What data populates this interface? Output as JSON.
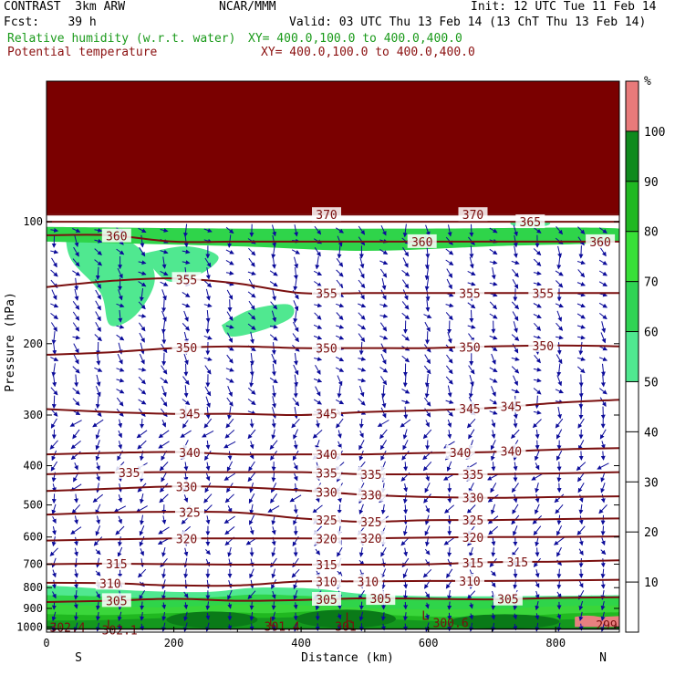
{
  "header": {
    "model": "CONTRAST  3km ARW",
    "org": "NCAR/MMM",
    "init": "Init: 12 UTC Tue 11 Feb 14",
    "fcst": "Fcst:    39 h",
    "valid": "Valid: 03 UTC Thu 13 Feb 14 (13 ChT Thu 13 Feb 14)",
    "field1": "Relative humidity (w.r.t. water)",
    "field1_xy": "XY= 400.0,100.0 to 400.0,400.0",
    "field2": "Potential temperature",
    "field2_xy": "XY= 400.0,100.0 to 400.0,400.0"
  },
  "colors": {
    "theta": "#7a0f0f",
    "wind": "#0c0c9a",
    "rh": [
      "#ffffff",
      "#50e890",
      "#2fd44a",
      "#3ad63a",
      "#20b820",
      "#14981e",
      "#0a7a18",
      "#e88080",
      "#f5a5a5"
    ]
  },
  "chart_data": {
    "type": "contour",
    "xlabel": "Distance (km)",
    "ylabel": "Pressure (hPa)",
    "xlim": [
      0,
      900
    ],
    "ylim": [
      1030,
      45
    ],
    "y_scale": "log",
    "xticks": [
      0,
      200,
      400,
      600,
      800
    ],
    "yticks": [
      100,
      200,
      300,
      400,
      500,
      600,
      700,
      800,
      900,
      1000
    ],
    "x_end_labels": {
      "left": "S",
      "right": "N"
    },
    "colorbar": {
      "unit": "%",
      "levels": [
        10,
        20,
        30,
        40,
        50,
        60,
        70,
        80,
        90,
        100
      ],
      "bands": [
        {
          "from": 0,
          "to": 50,
          "color": "#ffffff"
        },
        {
          "from": 50,
          "to": 60,
          "color": "#50e890"
        },
        {
          "from": 60,
          "to": 70,
          "color": "#30d454"
        },
        {
          "from": 70,
          "to": 80,
          "color": "#38e038"
        },
        {
          "from": 80,
          "to": 90,
          "color": "#20b822"
        },
        {
          "from": 90,
          "to": 100,
          "color": "#0f8a1e"
        },
        {
          "from": 100,
          "to": 110,
          "color": "#e87a7a"
        }
      ]
    },
    "theta_contours": [
      {
        "level": 305,
        "x": [
          0,
          100,
          200,
          300,
          400,
          500,
          600,
          700,
          800,
          900
        ],
        "p": [
          868,
          862,
          852,
          862,
          858,
          850,
          852,
          855,
          848,
          845
        ],
        "labels_x": [
          110,
          440,
          525,
          725
        ]
      },
      {
        "level": 310,
        "x": [
          0,
          100,
          200,
          300,
          400,
          500,
          600,
          700,
          800,
          900
        ],
        "p": [
          778,
          780,
          790,
          790,
          772,
          772,
          770,
          770,
          768,
          765
        ],
        "labels_x": [
          100,
          440,
          505,
          665
        ]
      },
      {
        "level": 315,
        "x": [
          0,
          100,
          200,
          300,
          400,
          500,
          600,
          700,
          800,
          900
        ],
        "p": [
          700,
          698,
          700,
          702,
          702,
          702,
          700,
          692,
          690,
          685
        ],
        "labels_x": [
          110,
          440,
          670,
          740
        ]
      },
      {
        "level": 320,
        "x": [
          0,
          100,
          200,
          300,
          400,
          500,
          600,
          700,
          800,
          900
        ],
        "p": [
          612,
          608,
          605,
          605,
          605,
          605,
          602,
          600,
          600,
          598
        ],
        "labels_x": [
          220,
          440,
          510,
          670
        ]
      },
      {
        "level": 325,
        "x": [
          0,
          100,
          200,
          300,
          400,
          500,
          600,
          700,
          800,
          900
        ],
        "p": [
          528,
          522,
          520,
          522,
          540,
          550,
          545,
          545,
          542,
          540
        ],
        "labels_x": [
          225,
          440,
          510,
          670
        ]
      },
      {
        "level": 330,
        "x": [
          0,
          100,
          200,
          300,
          400,
          500,
          600,
          700,
          800,
          900
        ],
        "p": [
          462,
          456,
          450,
          452,
          460,
          472,
          478,
          480,
          478,
          476
        ],
        "labels_x": [
          220,
          440,
          510,
          670
        ]
      },
      {
        "level": 335,
        "x": [
          0,
          100,
          200,
          300,
          400,
          500,
          600,
          700,
          800,
          900
        ],
        "p": [
          420,
          416,
          415,
          415,
          415,
          420,
          420,
          420,
          418,
          415
        ],
        "labels_x": [
          130,
          440,
          510,
          670
        ]
      },
      {
        "level": 340,
        "x": [
          0,
          100,
          200,
          300,
          400,
          500,
          600,
          700,
          800,
          900
        ],
        "p": [
          375,
          372,
          370,
          375,
          375,
          375,
          372,
          370,
          365,
          362
        ],
        "labels_x": [
          225,
          440,
          650,
          730
        ]
      },
      {
        "level": 345,
        "x": [
          0,
          100,
          200,
          300,
          400,
          500,
          600,
          700,
          800,
          900
        ],
        "p": [
          290,
          295,
          298,
          298,
          300,
          295,
          292,
          288,
          280,
          275
        ],
        "labels_x": [
          225,
          440,
          665,
          730
        ]
      },
      {
        "level": 350,
        "x": [
          0,
          100,
          200,
          300,
          400,
          500,
          600,
          700,
          800,
          900
        ],
        "p": [
          213,
          210,
          205,
          203,
          205,
          205,
          205,
          203,
          202,
          203
        ],
        "labels_x": [
          220,
          440,
          665,
          780
        ]
      },
      {
        "level": 355,
        "x": [
          0,
          100,
          200,
          300,
          400,
          500,
          600,
          700,
          800,
          900
        ],
        "p": [
          145,
          140,
          138,
          142,
          150,
          150,
          150,
          150,
          150,
          150
        ],
        "labels_x": [
          220,
          440,
          665,
          780
        ]
      },
      {
        "level": 360,
        "x": [
          0,
          100,
          200,
          300,
          400,
          500,
          600,
          700,
          800,
          900
        ],
        "p": [
          108,
          108,
          112,
          112,
          112,
          112,
          112,
          112,
          112,
          112
        ],
        "labels_x": [
          110,
          590,
          870
        ]
      },
      {
        "level": 365,
        "x": [
          0,
          100,
          200,
          300,
          400,
          500,
          600,
          700,
          800,
          900
        ],
        "p": [
          100,
          100,
          100,
          100,
          100,
          100,
          100,
          100,
          100,
          100
        ],
        "labels_x": [
          760
        ]
      },
      {
        "level": 370,
        "x": [
          0,
          100,
          200,
          300,
          400,
          500,
          600,
          700,
          800,
          900
        ],
        "p": [
          96,
          96,
          96,
          96,
          96,
          96,
          96,
          96,
          96,
          96
        ],
        "labels_x": [
          440,
          670
        ]
      }
    ],
    "surface_labels": [
      {
        "text": "302.4",
        "x": 5,
        "p": 1000
      },
      {
        "text": "302.1",
        "x": 115,
        "p": 1018
      },
      {
        "text": "301.4",
        "x": 370,
        "p": 995
      },
      {
        "text": "301",
        "x": 470,
        "p": 995
      },
      {
        "text": "300.6",
        "x": 635,
        "p": 975
      },
      {
        "text": "299",
        "x": 880,
        "p": 988
      }
    ],
    "low_markers": [
      {
        "text": "L",
        "x": 100,
        "p": 985
      },
      {
        "text": "L",
        "x": 355,
        "p": 970
      },
      {
        "text": "L",
        "x": 475,
        "p": 945
      },
      {
        "text": "L",
        "x": 475,
        "p": 985
      },
      {
        "text": "L",
        "x": 595,
        "p": 935
      }
    ]
  }
}
